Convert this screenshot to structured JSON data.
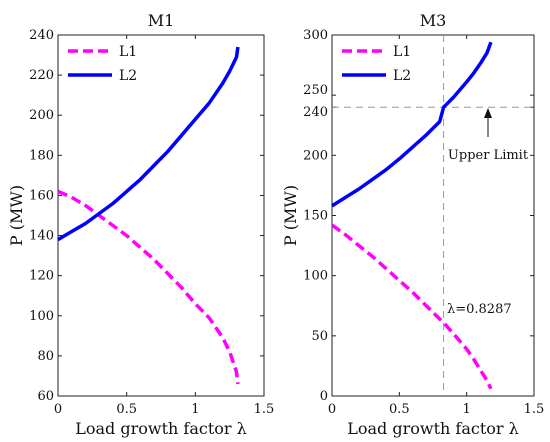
{
  "chart_data": [
    {
      "type": "line",
      "title": "M1",
      "xlabel": "Load growth factor λ",
      "ylabel": "P (MW)",
      "xlim": [
        0,
        1.5
      ],
      "ylim": [
        60,
        240
      ],
      "xticks": [
        0,
        0.5,
        1,
        1.5
      ],
      "xtick_labels": [
        "0",
        "0.5",
        "1",
        "1.5"
      ],
      "yticks": [
        60,
        80,
        100,
        120,
        140,
        160,
        180,
        200,
        220,
        240
      ],
      "ytick_labels": [
        "60",
        "80",
        "100",
        "120",
        "140",
        "160",
        "180",
        "200",
        "220",
        "240"
      ],
      "grid": false,
      "legend_position": "top-left",
      "series": [
        {
          "name": "L1",
          "color": "#ff00ff",
          "style": "dashed",
          "x": [
            0,
            0.1,
            0.2,
            0.3,
            0.4,
            0.5,
            0.6,
            0.7,
            0.8,
            0.9,
            1.0,
            1.1,
            1.2,
            1.25,
            1.3,
            1.31
          ],
          "y": [
            162,
            159,
            155,
            150,
            145,
            140,
            134,
            128,
            121,
            114,
            106,
            99,
            89,
            82,
            72,
            66
          ]
        },
        {
          "name": "L2",
          "color": "#0000ff",
          "style": "solid",
          "x": [
            0,
            0.1,
            0.2,
            0.3,
            0.4,
            0.5,
            0.6,
            0.7,
            0.8,
            0.9,
            1.0,
            1.1,
            1.2,
            1.25,
            1.3,
            1.31
          ],
          "y": [
            138,
            142,
            146,
            151,
            156,
            162,
            168,
            175,
            182,
            190,
            198,
            206,
            216,
            222,
            229,
            234
          ]
        }
      ]
    },
    {
      "type": "line",
      "title": "M3",
      "xlabel": "Load growth factor λ",
      "ylabel": "P (MW)",
      "xlim": [
        0,
        1.5
      ],
      "ylim": [
        0,
        300
      ],
      "xticks": [
        0,
        0.5,
        1,
        1.5
      ],
      "xtick_labels": [
        "0",
        "0.5",
        "1",
        "1.5"
      ],
      "yticks": [
        0,
        50,
        100,
        150,
        200,
        240,
        250,
        300
      ],
      "ytick_labels": [
        "0",
        "50",
        "100",
        "150",
        "200",
        "240",
        "250",
        "300"
      ],
      "grid": false,
      "legend_position": "top-left",
      "series": [
        {
          "name": "L1",
          "color": "#ff00ff",
          "style": "dashed",
          "x": [
            0,
            0.1,
            0.2,
            0.3,
            0.4,
            0.5,
            0.6,
            0.7,
            0.8,
            0.8287,
            0.9,
            1.0,
            1.05,
            1.1,
            1.15,
            1.18
          ],
          "y": [
            142,
            134,
            125,
            116,
            106,
            96,
            86,
            75,
            64,
            61,
            52,
            39,
            31,
            22,
            13,
            6
          ]
        },
        {
          "name": "L2",
          "color": "#0000ff",
          "style": "solid",
          "x": [
            0,
            0.1,
            0.2,
            0.3,
            0.4,
            0.5,
            0.6,
            0.7,
            0.8,
            0.8287,
            0.9,
            1.0,
            1.05,
            1.1,
            1.15,
            1.18
          ],
          "y": [
            158,
            165,
            172,
            180,
            188,
            197,
            207,
            217,
            228,
            240,
            248,
            261,
            268,
            276,
            285,
            294
          ]
        }
      ],
      "reference_lines": {
        "horizontal_value": 240,
        "vertical_value": 0.8287
      },
      "annotations": {
        "upper_limit": "Upper Limit",
        "lambda_value": "λ=0.8287"
      }
    }
  ]
}
